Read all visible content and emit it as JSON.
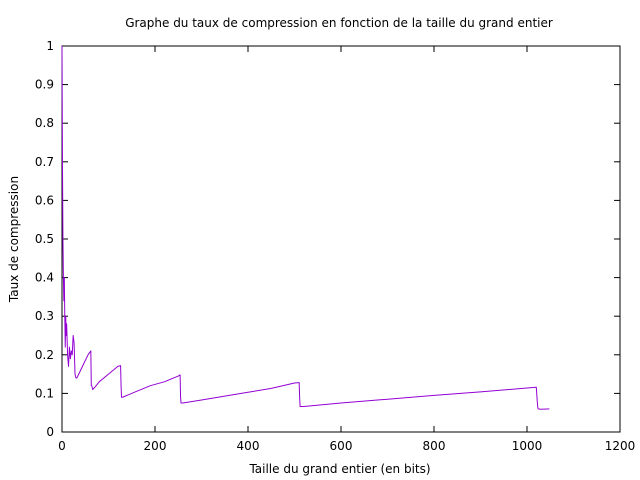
{
  "chart_data": {
    "type": "line",
    "title": "Graphe du taux de compression en fonction de la taille du grand entier",
    "xlabel": "Taille du grand entier (en bits)",
    "ylabel": "Taux de compression",
    "xlim": [
      0,
      1200
    ],
    "ylim": [
      0,
      1
    ],
    "xticks": [
      "0",
      "200",
      "400",
      "600",
      "800",
      "1000",
      "1200"
    ],
    "yticks": [
      "0",
      "0.1",
      "0.2",
      "0.3",
      "0.4",
      "0.5",
      "0.6",
      "0.7",
      "0.8",
      "0.9",
      "1"
    ],
    "grid": false,
    "series": [
      {
        "color": "#9400d3",
        "x": [
          0,
          1,
          2,
          3,
          4,
          5,
          6,
          7,
          8,
          9,
          10,
          12,
          14,
          16,
          18,
          20,
          22,
          24,
          26,
          28,
          30,
          32,
          36,
          40,
          48,
          56,
          62,
          63,
          64,
          66,
          70,
          80,
          100,
          120,
          126,
          127,
          128,
          130,
          160,
          190,
          220,
          250,
          254,
          255,
          256,
          260,
          300,
          350,
          400,
          450,
          500,
          510,
          511,
          512,
          520,
          600,
          700,
          800,
          900,
          1000,
          1020,
          1022,
          1023,
          1024,
          1030,
          1048
        ],
        "y": [
          1.0,
          0.7,
          0.5,
          0.4,
          0.34,
          0.4,
          0.3,
          0.22,
          0.3,
          0.25,
          0.28,
          0.2,
          0.17,
          0.22,
          0.19,
          0.21,
          0.2,
          0.25,
          0.23,
          0.15,
          0.14,
          0.14,
          0.15,
          0.16,
          0.18,
          0.2,
          0.21,
          0.12,
          0.12,
          0.11,
          0.115,
          0.13,
          0.15,
          0.17,
          0.172,
          0.12,
          0.09,
          0.09,
          0.105,
          0.12,
          0.13,
          0.145,
          0.148,
          0.09,
          0.075,
          0.075,
          0.083,
          0.093,
          0.103,
          0.113,
          0.127,
          0.128,
          0.09,
          0.066,
          0.066,
          0.075,
          0.085,
          0.095,
          0.104,
          0.114,
          0.116,
          0.08,
          0.065,
          0.06,
          0.059,
          0.06
        ]
      }
    ]
  }
}
